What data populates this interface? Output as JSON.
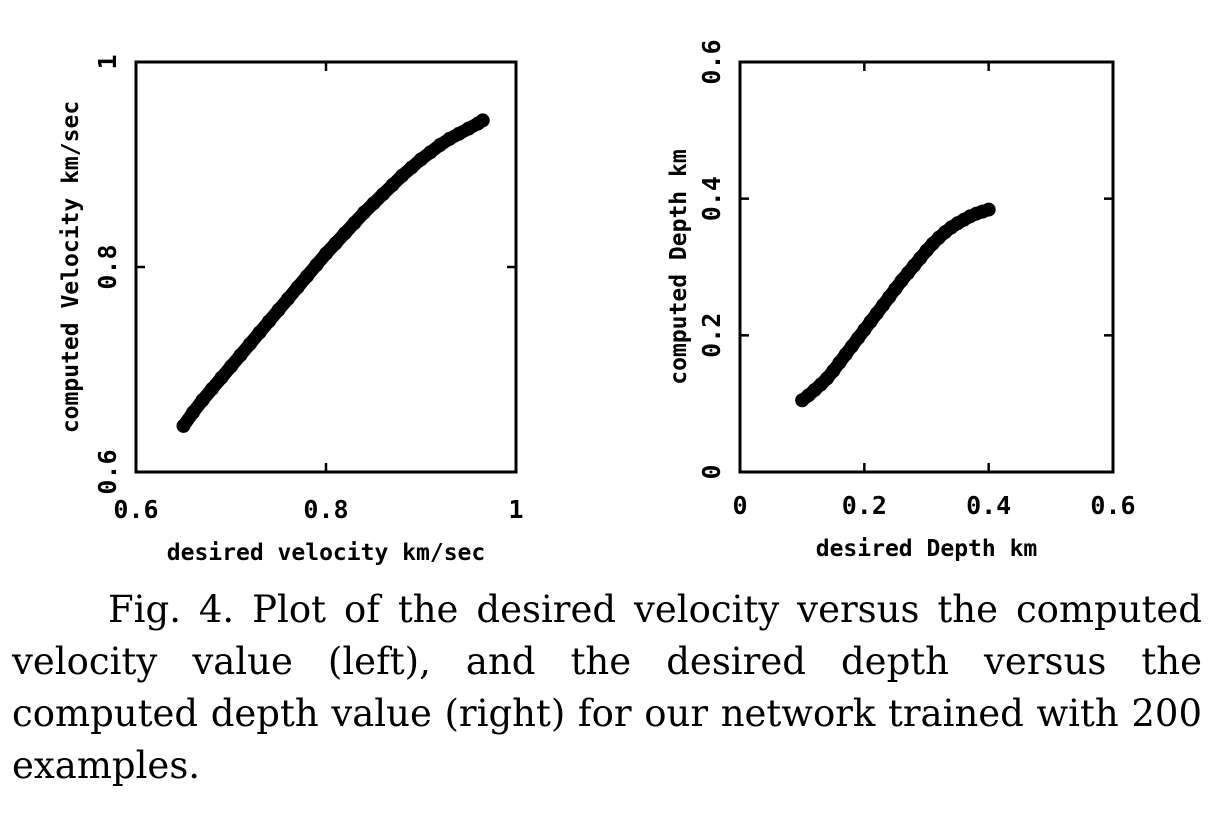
{
  "chart_data": [
    {
      "type": "scatter",
      "xlabel": "desired velocity km/sec",
      "ylabel": "computed Velocity km/sec",
      "xlim": [
        0.6,
        1.0
      ],
      "ylim": [
        0.6,
        1.0
      ],
      "xticks": [
        "0.6",
        "0.8",
        "1"
      ],
      "yticks": [
        "0.6",
        "0.8",
        "1"
      ],
      "grid": false,
      "series": [
        {
          "x": [
            0.65,
            0.66,
            0.67,
            0.68,
            0.69,
            0.7,
            0.71,
            0.72,
            0.73,
            0.74,
            0.75,
            0.76,
            0.77,
            0.78,
            0.79,
            0.8,
            0.81,
            0.82,
            0.83,
            0.84,
            0.85,
            0.86,
            0.87,
            0.88,
            0.89,
            0.9,
            0.91,
            0.92,
            0.93,
            0.94,
            0.95,
            0.96,
            0.965
          ],
          "y": [
            0.645,
            0.658,
            0.67,
            0.681,
            0.692,
            0.703,
            0.714,
            0.725,
            0.736,
            0.747,
            0.758,
            0.769,
            0.78,
            0.791,
            0.802,
            0.813,
            0.823,
            0.833,
            0.843,
            0.853,
            0.862,
            0.871,
            0.88,
            0.889,
            0.897,
            0.905,
            0.912,
            0.919,
            0.925,
            0.93,
            0.935,
            0.94,
            0.943
          ]
        }
      ]
    },
    {
      "type": "scatter",
      "xlabel": "desired Depth km",
      "ylabel": "computed Depth km",
      "xlim": [
        0,
        0.6
      ],
      "ylim": [
        0,
        0.6
      ],
      "xticks": [
        "0",
        "0.2",
        "0.4",
        "0.6"
      ],
      "yticks": [
        "0",
        "0.2",
        "0.4",
        "0.6"
      ],
      "grid": false,
      "series": [
        {
          "x": [
            0.1,
            0.11,
            0.12,
            0.13,
            0.14,
            0.15,
            0.16,
            0.17,
            0.18,
            0.19,
            0.2,
            0.21,
            0.22,
            0.23,
            0.24,
            0.25,
            0.26,
            0.27,
            0.28,
            0.29,
            0.3,
            0.31,
            0.32,
            0.33,
            0.34,
            0.35,
            0.36,
            0.37,
            0.38,
            0.39,
            0.4
          ],
          "y": [
            0.105,
            0.112,
            0.12,
            0.128,
            0.137,
            0.148,
            0.16,
            0.172,
            0.184,
            0.196,
            0.208,
            0.22,
            0.232,
            0.244,
            0.256,
            0.268,
            0.28,
            0.291,
            0.302,
            0.313,
            0.324,
            0.334,
            0.343,
            0.351,
            0.358,
            0.364,
            0.369,
            0.374,
            0.378,
            0.381,
            0.384
          ]
        }
      ]
    }
  ],
  "caption": "Fig.  4.  Plot of the desired velocity versus the computed velocity value (left), and the desired depth versus the computed depth value (right) for our network trained with 200 examples."
}
